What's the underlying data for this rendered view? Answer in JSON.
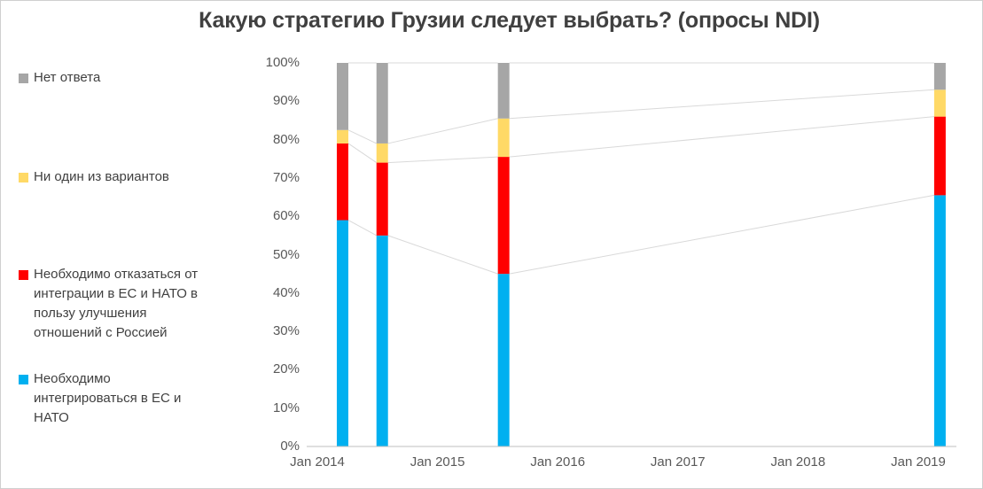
{
  "title": "Какую стратегию Грузии следует выбрать? (опросы NDI)",
  "chart_data": {
    "type": "bar",
    "subtype": "stacked-column-100pct",
    "title": "Какую стратегию Грузии следует выбрать? (опросы NDI)",
    "legend_position": "left",
    "grid": false,
    "ylim": [
      0,
      100
    ],
    "y_ticks": [
      0,
      10,
      20,
      30,
      40,
      50,
      60,
      70,
      80,
      90,
      100
    ],
    "y_tick_suffix": "%",
    "x_tick_labels": [
      "Jan 2014",
      "Jan 2015",
      "Jan 2016",
      "Jan 2017",
      "Jan 2018",
      "Jan 2019"
    ],
    "x_tick_years": [
      2014,
      2015,
      2016,
      2017,
      2018,
      2019
    ],
    "x": [
      2014.21,
      2014.54,
      2015.55,
      2019.18
    ],
    "series": [
      {
        "name": "Необходимо интегрироваться в ЕС и НАТО",
        "color": "#00B0F0",
        "values": [
          59,
          55,
          45,
          65.5
        ]
      },
      {
        "name": "Необходимо отказаться от интеграции в ЕС и НАТО в пользу улучшения отношений с Россией",
        "color": "#FF0000",
        "values": [
          20,
          19,
          30.5,
          20.5
        ]
      },
      {
        "name": "Ни один из вариантов",
        "color": "#FFD966",
        "values": [
          3.5,
          5,
          10,
          7
        ]
      },
      {
        "name": "Нет ответа",
        "color": "#A6A6A6",
        "values": [
          17.5,
          21,
          14.5,
          7
        ]
      }
    ],
    "connector_line_color": "#D9D9D9",
    "axis_color": "#BFBFBF"
  }
}
